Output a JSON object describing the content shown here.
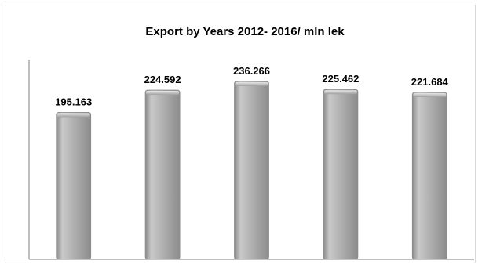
{
  "chart_data": {
    "type": "bar",
    "title": "Export by Years 2012- 2016/ mln lek",
    "categories": [
      "",
      "",
      "",
      "",
      ""
    ],
    "values": [
      195.163,
      224.592,
      236.266,
      225.462,
      221.684
    ],
    "data_labels": [
      "195.163",
      "224.592",
      "236.266",
      "225.462",
      "221.684"
    ],
    "xlabel": "",
    "ylabel": "",
    "ylim": [
      0,
      260
    ],
    "grid": false,
    "legend": "none",
    "bar_color": "#a6a6a6",
    "axis_color": "#7f7f7f"
  }
}
